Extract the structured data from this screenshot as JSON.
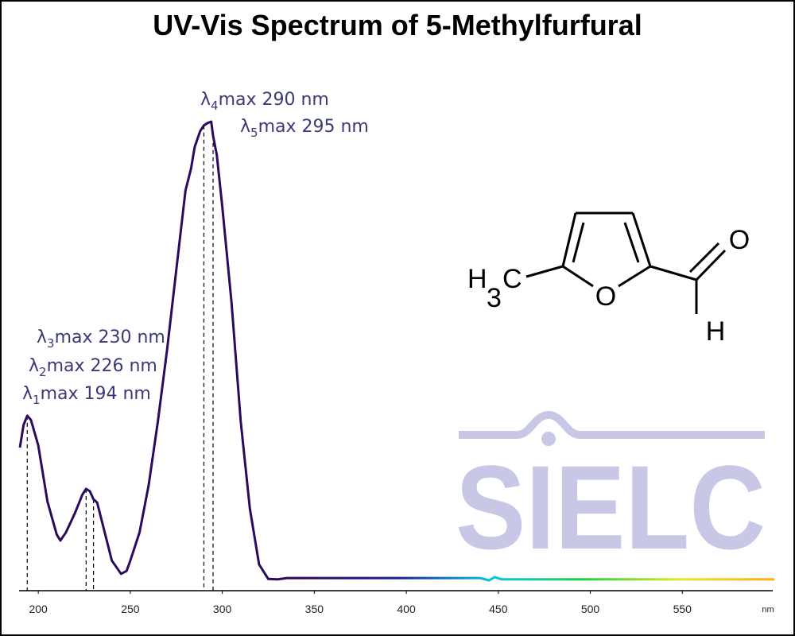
{
  "chart_data": {
    "type": "line",
    "title": "UV-Vis Spectrum of 5-Methylfurfural",
    "x_label": "nm",
    "x": [
      190,
      192,
      194,
      196,
      200,
      205,
      210,
      212,
      215,
      220,
      224,
      226,
      228,
      230,
      232,
      235,
      240,
      245,
      248,
      250,
      255,
      260,
      265,
      270,
      275,
      280,
      283,
      285,
      288,
      290,
      292,
      294,
      295,
      297,
      300,
      305,
      310,
      315,
      320,
      325,
      330,
      335,
      350,
      400,
      440,
      445,
      448,
      452,
      500,
      550,
      600
    ],
    "series": [
      {
        "colors": [
          "#2a0a5e",
          "#2a0a5e",
          "#2a0a5e",
          "#2a0a5e",
          "#1c1c9c",
          "#00c8e0",
          "#20d040",
          "#e8e820",
          "#ffb000"
        ],
        "values": [
          0.305,
          0.353,
          0.373,
          0.364,
          0.31,
          0.19,
          0.12,
          0.107,
          0.124,
          0.166,
          0.205,
          0.217,
          0.212,
          0.195,
          0.188,
          0.141,
          0.064,
          0.036,
          0.042,
          0.064,
          0.124,
          0.225,
          0.361,
          0.514,
          0.683,
          0.853,
          0.9,
          0.946,
          0.98,
          0.992,
          0.997,
          1.0,
          0.97,
          0.929,
          0.819,
          0.615,
          0.361,
          0.175,
          0.056,
          0.025,
          0.024,
          0.027,
          0.027,
          0.027,
          0.027,
          0.022,
          0.029,
          0.024,
          0.024,
          0.024,
          0.024
        ]
      }
    ],
    "xlim": [
      190,
      600
    ],
    "ylim": [
      0,
      1.04
    ],
    "xticks": [
      200,
      250,
      300,
      350,
      400,
      450,
      500,
      550
    ],
    "annotations": [
      {
        "symbol": "λ",
        "sub": "1",
        "text": "max  194 nm",
        "x": 194
      },
      {
        "symbol": "λ",
        "sub": "2",
        "text": "max  226 nm",
        "x": 226
      },
      {
        "symbol": "λ",
        "sub": "3",
        "text": "max  230 nm",
        "x": 230
      },
      {
        "symbol": "λ",
        "sub": "4",
        "text": "max  290 nm",
        "x": 290
      },
      {
        "symbol": "λ",
        "sub": "5",
        "text": "max  295 nm",
        "x": 295
      }
    ]
  },
  "molecule": {
    "methyl_h": "H",
    "methyl_sub": "3",
    "methyl_c": "C",
    "ring_o": "O",
    "carbonyl_o": "O",
    "aldehyde_h": "H"
  },
  "watermark": "SIELC"
}
